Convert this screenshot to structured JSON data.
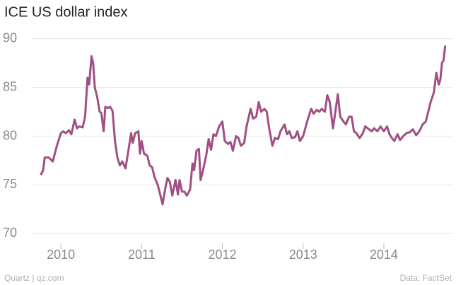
{
  "chart_data": {
    "type": "line",
    "title": "ICE US dollar index",
    "source": "Quartz | qz.com",
    "credit": "Data: FactSet",
    "x": [
      2009.75,
      2009.78,
      2009.8,
      2009.85,
      2009.9,
      2009.95,
      2010.0,
      2010.03,
      2010.06,
      2010.1,
      2010.13,
      2010.17,
      2010.2,
      2010.23,
      2010.27,
      2010.3,
      2010.33,
      2010.35,
      2010.38,
      2010.4,
      2010.42,
      2010.45,
      2010.48,
      2010.5,
      2010.53,
      2010.55,
      2010.58,
      2010.61,
      2010.64,
      2010.67,
      2010.7,
      2010.73,
      2010.76,
      2010.8,
      2010.83,
      2010.87,
      2010.89,
      2010.92,
      2010.96,
      2010.98,
      2011.0,
      2011.03,
      2011.07,
      2011.1,
      2011.13,
      2011.16,
      2011.2,
      2011.23,
      2011.26,
      2011.29,
      2011.32,
      2011.35,
      2011.38,
      2011.42,
      2011.45,
      2011.47,
      2011.5,
      2011.53,
      2011.56,
      2011.6,
      2011.63,
      2011.65,
      2011.68,
      2011.71,
      2011.73,
      2011.76,
      2011.8,
      2011.83,
      2011.86,
      2011.89,
      2011.92,
      2011.96,
      2012.0,
      2012.03,
      2012.07,
      2012.1,
      2012.13,
      2012.17,
      2012.2,
      2012.23,
      2012.27,
      2012.3,
      2012.35,
      2012.38,
      2012.42,
      2012.45,
      2012.48,
      2012.52,
      2012.55,
      2012.58,
      2012.62,
      2012.65,
      2012.69,
      2012.72,
      2012.77,
      2012.8,
      2012.83,
      2012.86,
      2012.9,
      2012.93,
      2012.96,
      2013.0,
      2013.05,
      2013.1,
      2013.13,
      2013.17,
      2013.2,
      2013.23,
      2013.27,
      2013.3,
      2013.33,
      2013.37,
      2013.4,
      2013.43,
      2013.46,
      2013.5,
      2013.53,
      2013.57,
      2013.6,
      2013.63,
      2013.66,
      2013.7,
      2013.74,
      2013.77,
      2013.8,
      2013.85,
      2013.88,
      2013.92,
      2013.96,
      2014.0,
      2014.04,
      2014.07,
      2014.1,
      2014.13,
      2014.17,
      2014.2,
      2014.24,
      2014.28,
      2014.32,
      2014.36,
      2014.4,
      2014.44,
      2014.48,
      2014.52,
      2014.55,
      2014.58,
      2014.62,
      2014.65,
      2014.68,
      2014.7,
      2014.72,
      2014.74,
      2014.76
    ],
    "series": [
      {
        "color": "#a04f82",
        "values": [
          76.0,
          76.5,
          77.8,
          77.8,
          77.4,
          79.0,
          80.3,
          80.5,
          80.3,
          80.6,
          80.2,
          81.7,
          80.8,
          81.0,
          80.9,
          82.0,
          86.0,
          85.3,
          88.2,
          87.5,
          85.0,
          84.0,
          82.5,
          82.4,
          80.5,
          83.0,
          82.9,
          83.0,
          82.6,
          79.5,
          77.8,
          77.0,
          77.4,
          76.7,
          78.2,
          80.3,
          79.3,
          80.3,
          80.5,
          78.2,
          79.5,
          78.2,
          78.0,
          77.0,
          76.8,
          75.8,
          75.0,
          74.0,
          73.0,
          74.5,
          75.7,
          75.3,
          73.9,
          75.5,
          74.0,
          75.5,
          74.3,
          74.3,
          73.9,
          74.5,
          77.2,
          76.5,
          78.5,
          78.7,
          75.5,
          76.5,
          78.0,
          79.7,
          78.6,
          80.2,
          80.0,
          81.0,
          81.5,
          79.5,
          79.2,
          79.4,
          78.5,
          80.0,
          79.8,
          79.0,
          79.3,
          81.0,
          82.8,
          81.8,
          82.0,
          83.5,
          82.5,
          82.8,
          82.5,
          80.8,
          79.0,
          79.8,
          79.7,
          80.5,
          81.2,
          80.2,
          80.5,
          79.8,
          79.9,
          80.5,
          79.5,
          80.0,
          81.5,
          82.8,
          82.3,
          82.7,
          82.5,
          82.8,
          82.5,
          84.2,
          83.5,
          80.8,
          82.5,
          84.3,
          82.0,
          81.5,
          81.2,
          82.0,
          82.0,
          80.5,
          80.3,
          79.8,
          80.3,
          81.0,
          80.8,
          80.5,
          80.8,
          80.5,
          81.0,
          80.5,
          81.0,
          80.2,
          79.8,
          79.5,
          80.2,
          79.6,
          80.0,
          80.3,
          80.4,
          80.7,
          80.1,
          80.5,
          81.2,
          81.5,
          82.5,
          83.5,
          84.5,
          86.5,
          85.3,
          85.8,
          87.5,
          87.8,
          89.3
        ]
      }
    ],
    "xlim": [
      2009.64,
      2014.85
    ],
    "xticks": [
      2010,
      2011,
      2012,
      2013,
      2014
    ],
    "ylim": [
      69,
      91
    ],
    "yticks": [
      70,
      75,
      80,
      85,
      90
    ],
    "grid": true
  }
}
